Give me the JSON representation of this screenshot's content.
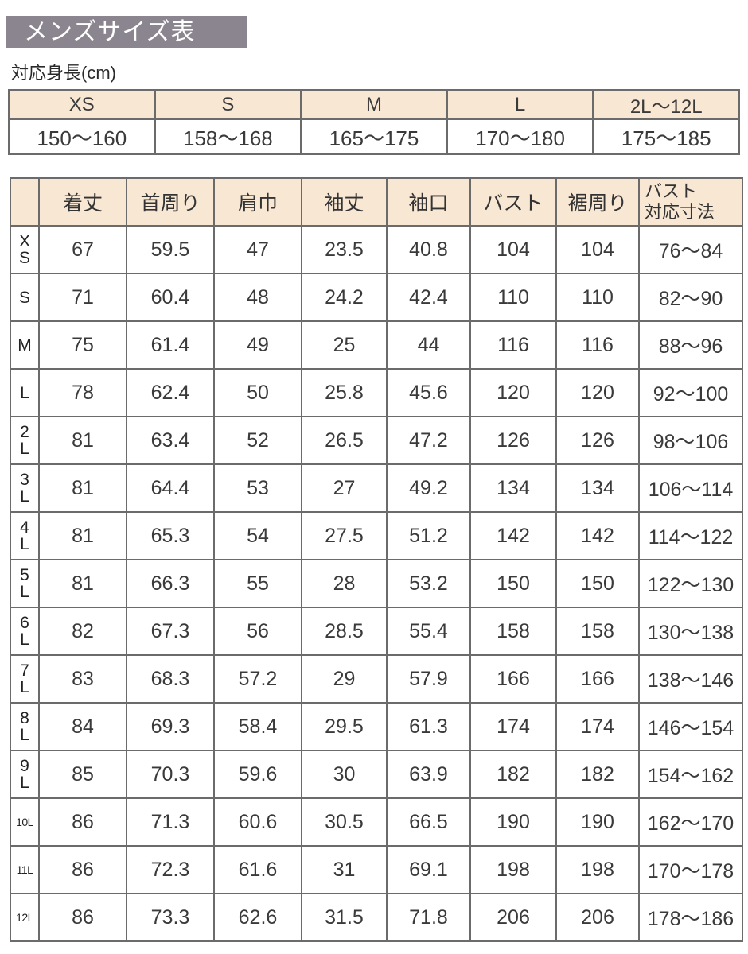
{
  "title": "メンズサイズ表",
  "height_table": {
    "label": "対応身長(cm)",
    "headers": [
      "XS",
      "S",
      "M",
      "L",
      "2L〜12L"
    ],
    "values": [
      "150〜160",
      "158〜168",
      "165〜175",
      "170〜180",
      "175〜185"
    ]
  },
  "size_table": {
    "headers": [
      "",
      "着丈",
      "首周り",
      "肩巾",
      "袖丈",
      "袖口",
      "バスト",
      "裾周り",
      "バスト\n対応寸法"
    ],
    "header_last_line1": "バスト",
    "header_last_line2": "対応寸法",
    "rows": [
      [
        "XS",
        "67",
        "59.5",
        "47",
        "23.5",
        "40.8",
        "104",
        "104",
        "76〜84"
      ],
      [
        "S",
        "71",
        "60.4",
        "48",
        "24.2",
        "42.4",
        "110",
        "110",
        "82〜90"
      ],
      [
        "M",
        "75",
        "61.4",
        "49",
        "25",
        "44",
        "116",
        "116",
        "88〜96"
      ],
      [
        "L",
        "78",
        "62.4",
        "50",
        "25.8",
        "45.6",
        "120",
        "120",
        "92〜100"
      ],
      [
        "2L",
        "81",
        "63.4",
        "52",
        "26.5",
        "47.2",
        "126",
        "126",
        "98〜106"
      ],
      [
        "3L",
        "81",
        "64.4",
        "53",
        "27",
        "49.2",
        "134",
        "134",
        "106〜114"
      ],
      [
        "4L",
        "81",
        "65.3",
        "54",
        "27.5",
        "51.2",
        "142",
        "142",
        "114〜122"
      ],
      [
        "5L",
        "81",
        "66.3",
        "55",
        "28",
        "53.2",
        "150",
        "150",
        "122〜130"
      ],
      [
        "6L",
        "82",
        "67.3",
        "56",
        "28.5",
        "55.4",
        "158",
        "158",
        "130〜138"
      ],
      [
        "7L",
        "83",
        "68.3",
        "57.2",
        "29",
        "57.9",
        "166",
        "166",
        "138〜146"
      ],
      [
        "8L",
        "84",
        "69.3",
        "58.4",
        "29.5",
        "61.3",
        "174",
        "174",
        "146〜154"
      ],
      [
        "9L",
        "85",
        "70.3",
        "59.6",
        "30",
        "63.9",
        "182",
        "182",
        "154〜162"
      ],
      [
        "10L",
        "86",
        "71.3",
        "60.6",
        "30.5",
        "66.5",
        "190",
        "190",
        "162〜170"
      ],
      [
        "11L",
        "86",
        "72.3",
        "61.6",
        "31",
        "69.1",
        "198",
        "198",
        "170〜178"
      ],
      [
        "12L",
        "86",
        "73.3",
        "62.6",
        "31.5",
        "71.8",
        "206",
        "206",
        "178〜186"
      ]
    ]
  }
}
